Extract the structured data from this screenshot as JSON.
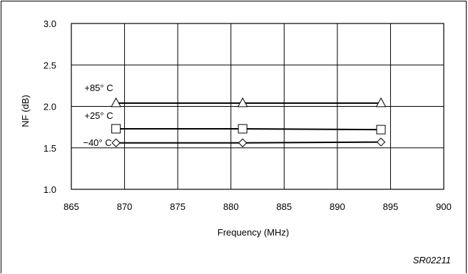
{
  "chart_data": {
    "type": "line",
    "xlabel": "Frequency (MHz)",
    "ylabel": "NF (dB)",
    "xlim": [
      865,
      900
    ],
    "ylim": [
      1.0,
      3.0
    ],
    "x_ticks": [
      "865",
      "870",
      "875",
      "880",
      "885",
      "890",
      "895",
      "900"
    ],
    "y_ticks": [
      "1.0",
      "1.5",
      "2.0",
      "2.5",
      "3.0"
    ],
    "grid": true,
    "series": [
      {
        "name": "+85° C",
        "marker": "triangle",
        "x": [
          869.2,
          881.1,
          894.1
        ],
        "y": [
          2.04,
          2.04,
          2.04
        ]
      },
      {
        "name": "+25° C",
        "marker": "square",
        "x": [
          869.2,
          881.1,
          894.1
        ],
        "y": [
          1.73,
          1.73,
          1.72
        ]
      },
      {
        "name": "−40° C",
        "marker": "diamond",
        "x": [
          869.2,
          881.1,
          894.1
        ],
        "y": [
          1.56,
          1.56,
          1.57
        ]
      }
    ]
  },
  "figure_id": "SR02211"
}
